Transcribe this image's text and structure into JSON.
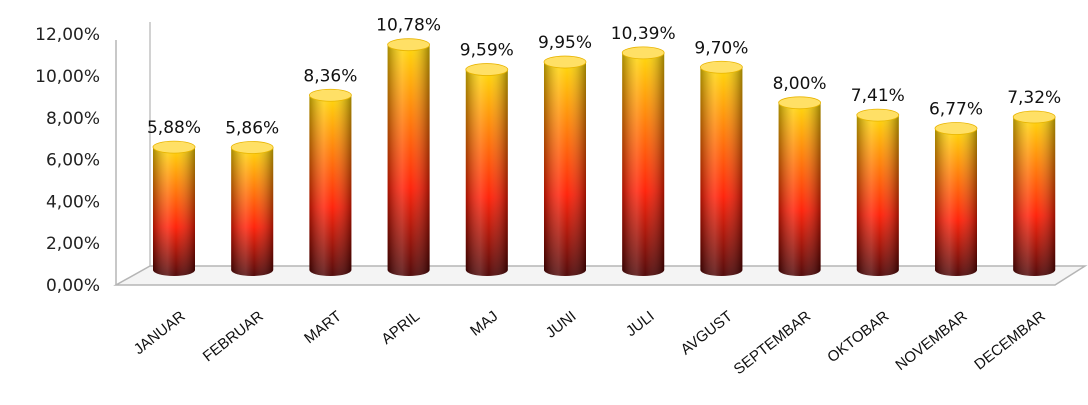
{
  "chart_data": {
    "type": "bar",
    "style": "3d-cylinder",
    "categories": [
      "JANUAR",
      "FEBRUAR",
      "MART",
      "APRIL",
      "MAJ",
      "JUNI",
      "JULI",
      "AVGUST",
      "SEPTEMBAR",
      "OKTOBAR",
      "NOVEMBAR",
      "DECEMBAR"
    ],
    "values": [
      5.88,
      5.86,
      8.36,
      10.78,
      9.59,
      9.95,
      10.39,
      9.7,
      8.0,
      7.41,
      6.77,
      7.32
    ],
    "data_labels": [
      "5,88%",
      "5,86%",
      "8,36%",
      "10,78%",
      "9,59%",
      "9,95%",
      "10,39%",
      "9,70%",
      "8,00%",
      "7,41%",
      "6,77%",
      "7,32%"
    ],
    "yticks": [
      "0,00%",
      "2,00%",
      "4,00%",
      "6,00%",
      "8,00%",
      "10,00%",
      "12,00%"
    ],
    "ylim": [
      0,
      12
    ],
    "title": "",
    "xlabel": "",
    "ylabel": "",
    "grid": false,
    "legend": "none",
    "colors": {
      "gradient_top": "#ffd800",
      "gradient_mid": "#ff1a00",
      "gradient_bottom": "#4a0000",
      "floor": "#f4f4f4",
      "axis": "#b5b5b5"
    }
  }
}
